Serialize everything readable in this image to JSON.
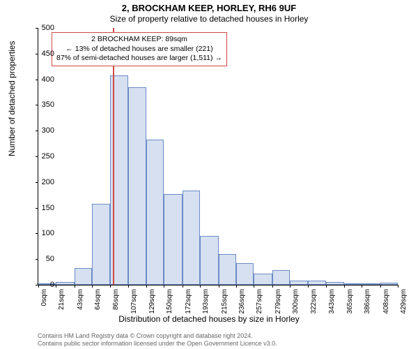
{
  "title": "2, BROCKHAM KEEP, HORLEY, RH6 9UF",
  "subtitle": "Size of property relative to detached houses in Horley",
  "ylabel": "Number of detached properties",
  "xlabel": "Distribution of detached houses by size in Horley",
  "chart": {
    "type": "histogram",
    "ylim": [
      0,
      500
    ],
    "ytick_step": 50,
    "yticks": [
      0,
      50,
      100,
      150,
      200,
      250,
      300,
      350,
      400,
      450,
      500
    ],
    "xticks": [
      0,
      21,
      43,
      64,
      86,
      107,
      129,
      150,
      172,
      193,
      215,
      236,
      257,
      279,
      300,
      322,
      343,
      365,
      386,
      408,
      429
    ],
    "xtick_suffix": "sqm",
    "bar_fill": "#d6e0f0",
    "bar_stroke": "#6b8bc5",
    "marker_color": "#d04848",
    "marker_x": 89,
    "bars": [
      {
        "x0": 0,
        "x1": 21,
        "y": 3
      },
      {
        "x0": 21,
        "x1": 43,
        "y": 6
      },
      {
        "x0": 43,
        "x1": 64,
        "y": 33
      },
      {
        "x0": 64,
        "x1": 86,
        "y": 158
      },
      {
        "x0": 86,
        "x1": 107,
        "y": 408
      },
      {
        "x0": 107,
        "x1": 129,
        "y": 384
      },
      {
        "x0": 129,
        "x1": 150,
        "y": 282
      },
      {
        "x0": 150,
        "x1": 172,
        "y": 176
      },
      {
        "x0": 172,
        "x1": 193,
        "y": 184
      },
      {
        "x0": 193,
        "x1": 215,
        "y": 95
      },
      {
        "x0": 215,
        "x1": 236,
        "y": 60
      },
      {
        "x0": 236,
        "x1": 257,
        "y": 42
      },
      {
        "x0": 257,
        "x1": 279,
        "y": 22
      },
      {
        "x0": 279,
        "x1": 300,
        "y": 28
      },
      {
        "x0": 300,
        "x1": 322,
        "y": 8
      },
      {
        "x0": 322,
        "x1": 343,
        "y": 8
      },
      {
        "x0": 343,
        "x1": 365,
        "y": 5
      },
      {
        "x0": 365,
        "x1": 386,
        "y": 2
      },
      {
        "x0": 386,
        "x1": 408,
        "y": 2
      },
      {
        "x0": 408,
        "x1": 429,
        "y": 4
      }
    ],
    "xmax": 429
  },
  "annotation": {
    "line1": "2 BROCKHAM KEEP: 89sqm",
    "line2": "← 13% of detached houses are smaller (221)",
    "line3": "87% of semi-detached houses are larger (1,511) →",
    "border_color": "#d04848"
  },
  "footer": {
    "line1": "Contains HM Land Registry data © Crown copyright and database right 2024.",
    "line2": "Contains public sector information licensed under the Open Government Licence v3.0."
  }
}
